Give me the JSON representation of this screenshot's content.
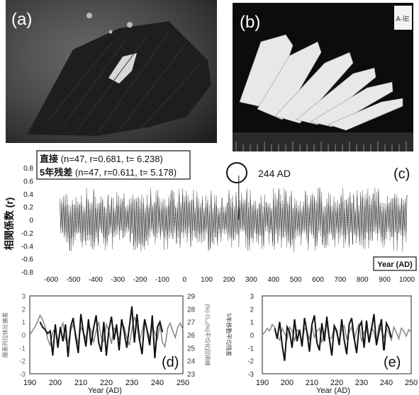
{
  "panels": {
    "a_label": "(a)",
    "b_label": "(b)",
    "c_label": "(c)",
    "d_label": "(d)",
    "e_label": "(e)",
    "b_tag": "A-ÏE"
  },
  "colors": {
    "photo_a_bg": "#3a3a3a",
    "photo_b_bg": "#111111",
    "series_dark": "#111111",
    "series_grey": "#8c8c8c"
  },
  "chart_data": [
    {
      "id": "c",
      "type": "line",
      "ylabel": "相関係数 (r)",
      "xlabel": "Year (AD)",
      "xlim": [
        -600,
        1000
      ],
      "ylim": [
        -0.8,
        0.8
      ],
      "x_ticks": [
        -600,
        -500,
        -400,
        -300,
        -200,
        -100,
        0,
        100,
        200,
        300,
        400,
        500,
        600,
        700,
        800,
        900,
        1000
      ],
      "y_ticks": [
        "0.8",
        "0.6",
        "0.4",
        "0.2",
        "0",
        "-0.2",
        "-0.4",
        "-0.6",
        "-0.8"
      ],
      "legend": [
        {
          "name": "直接",
          "stats": "(n=47, r=0.681, t= 6.238)"
        },
        {
          "name": "5年残差",
          "stats": "(n=47, r=0.611, t= 5.178)"
        }
      ],
      "annotation": {
        "text": "244 AD",
        "x": 244,
        "y": 0.68
      },
      "series_range": [
        -560,
        1000
      ],
      "amplitude_range": [
        -0.5,
        0.5
      ],
      "grid": false
    },
    {
      "id": "d",
      "type": "line",
      "xlabel": "Year (AD)",
      "ylabel_left": "酸素同位体比偏差",
      "ylabel_right": "(%) O₁₈(%)平均化回帰線",
      "xlim": [
        190,
        250
      ],
      "x_ticks": [
        190,
        200,
        210,
        220,
        230,
        240,
        250
      ],
      "ylim_left": [
        -3,
        3
      ],
      "ylim_right": [
        23,
        29
      ],
      "y_ticks_left": [
        3,
        2,
        1,
        0,
        -1,
        -2,
        -3
      ],
      "y_ticks_right": [
        29,
        28,
        27,
        26,
        25,
        24,
        23
      ],
      "series": [
        {
          "name": "",
          "color": "grey",
          "x": [
            190,
            191,
            192,
            193,
            194,
            195,
            196,
            197,
            198,
            199,
            200,
            201,
            202,
            203,
            204,
            205,
            206,
            207,
            208,
            209,
            210,
            211,
            212,
            213,
            214,
            215,
            216,
            217,
            218,
            219,
            220,
            221,
            222,
            223,
            224,
            225,
            226,
            227,
            228,
            229,
            230,
            231,
            232,
            233,
            234,
            235,
            236,
            237,
            238,
            239,
            240,
            241,
            242,
            243,
            244,
            245,
            246,
            247,
            248,
            249,
            250
          ],
          "values": [
            0,
            0.3,
            0.6,
            1.0,
            1.5,
            1.2,
            0.6,
            -0.3,
            -0.8,
            0.2,
            0.5,
            -0.5,
            0.4,
            0.9,
            -0.4,
            -0.6,
            0.3,
            0.8,
            0.1,
            -0.7,
            0.6,
            0.2,
            -0.3,
            0.7,
            0.4,
            -0.6,
            0.3,
            1.0,
            -0.2,
            -0.5,
            0.8,
            0.3,
            -0.7,
            0.5,
            0.2,
            -0.4,
            0.9,
            0.6,
            -0.2,
            -0.8,
            0.4,
            1.4,
            0.7,
            -0.5,
            0.3,
            1.2,
            0.4,
            -0.3,
            0.6,
            0.2,
            -0.4,
            0.8,
            -0.6,
            -0.9,
            0.5,
            0.9,
            0.3,
            -0.2,
            0.6,
            0.9,
            0.4
          ]
        },
        {
          "name": "",
          "color": "dark",
          "x": [
            194,
            195,
            196,
            197,
            198,
            199,
            200,
            201,
            202,
            203,
            204,
            205,
            206,
            207,
            208,
            209,
            210,
            211,
            212,
            213,
            214,
            215,
            216,
            217,
            218,
            219,
            220,
            221,
            222,
            223,
            224,
            225,
            226,
            227,
            228,
            229,
            230,
            231,
            232,
            233,
            234,
            235,
            236,
            237,
            238,
            239,
            240,
            241,
            242
          ],
          "values": [
            1.0,
            0.6,
            0.4,
            0.1,
            0.3,
            -1.6,
            0.8,
            -1.0,
            0.6,
            -0.5,
            0.8,
            -1.7,
            0.6,
            1.3,
            -0.2,
            -1.4,
            1.6,
            0.2,
            -0.9,
            1.2,
            -0.8,
            0.5,
            1.5,
            -0.6,
            -1.3,
            1.0,
            -1.6,
            0.4,
            1.4,
            -0.4,
            0.8,
            -1.2,
            1.2,
            0.2,
            -1.0,
            0.6,
            2.2,
            -0.6,
            1.6,
            -0.4,
            -1.5,
            1.2,
            0.3,
            -0.8,
            1.5,
            -1.8,
            0.6,
            1.0,
            0.2
          ]
        }
      ]
    },
    {
      "id": "e",
      "type": "line",
      "xlabel": "Year (AD)",
      "ylabel_right": "5年移動平均残差",
      "xlim": [
        190,
        250
      ],
      "x_ticks": [
        190,
        200,
        210,
        220,
        230,
        240,
        250
      ],
      "ylim": [
        -3,
        3
      ],
      "y_ticks": [
        3,
        2,
        1,
        0,
        -1,
        -2,
        -3
      ],
      "series": [
        {
          "name": "",
          "color": "grey",
          "x": [
            190,
            191,
            192,
            193,
            194,
            195,
            196,
            197,
            198,
            199,
            200,
            201,
            202,
            203,
            204,
            205,
            206,
            207,
            208,
            209,
            210,
            211,
            212,
            213,
            214,
            215,
            216,
            217,
            218,
            219,
            220,
            221,
            222,
            223,
            224,
            225,
            226,
            227,
            228,
            229,
            230,
            231,
            232,
            233,
            234,
            235,
            236,
            237,
            238,
            239,
            240,
            241,
            242,
            243,
            244,
            245,
            246,
            247,
            248,
            249,
            250
          ],
          "values": [
            0,
            0.2,
            0.5,
            0.3,
            0.8,
            0.6,
            -0.2,
            -0.4,
            0.5,
            0.1,
            -0.3,
            0.6,
            0.3,
            -0.5,
            0.4,
            0.2,
            -0.6,
            0.5,
            0.3,
            -0.4,
            0.7,
            -0.2,
            0.3,
            0.5,
            -0.6,
            0.2,
            0.8,
            -0.3,
            -0.2,
            0.6,
            0.1,
            -0.5,
            0.4,
            0.7,
            -0.3,
            0.2,
            0.6,
            -0.4,
            0.3,
            0.9,
            -0.5,
            0.2,
            0.4,
            -0.3,
            0.6,
            0.2,
            -0.7,
            0.8,
            0.3,
            -0.2,
            0.5,
            0.1,
            -0.4,
            0.6,
            0.2,
            -0.3,
            0.5,
            0.3,
            -0.1,
            0.4,
            0.2
          ]
        },
        {
          "name": "",
          "color": "dark",
          "x": [
            195,
            196,
            197,
            198,
            199,
            200,
            201,
            202,
            203,
            204,
            205,
            206,
            207,
            208,
            209,
            210,
            211,
            212,
            213,
            214,
            215,
            216,
            217,
            218,
            219,
            220,
            221,
            222,
            223,
            224,
            225,
            226,
            227,
            228,
            229,
            230,
            231,
            232,
            233,
            234,
            235,
            236,
            237,
            238,
            239,
            240,
            241,
            242
          ],
          "values": [
            0.5,
            -0.3,
            1.0,
            -0.8,
            -2.0,
            0.6,
            0.2,
            -1.0,
            1.2,
            -0.5,
            0.4,
            -0.9,
            1.3,
            0.2,
            -1.3,
            0.8,
            1.5,
            -0.6,
            -1.2,
            0.9,
            -0.5,
            1.4,
            -0.3,
            -1.6,
            0.7,
            0.3,
            -0.8,
            1.2,
            -0.4,
            -1.5,
            0.8,
            1.3,
            -0.2,
            -1.4,
            0.6,
            1.0,
            -1.0,
            1.1,
            -0.6,
            0.4,
            1.6,
            -0.8,
            0.2,
            1.2,
            -1.4,
            0.9,
            0.5,
            -0.2
          ]
        }
      ]
    }
  ]
}
